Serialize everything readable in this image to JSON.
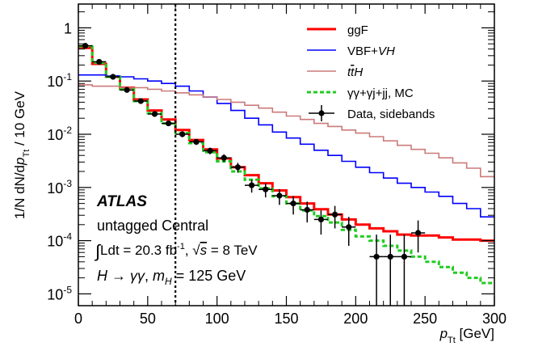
{
  "chart_data": {
    "type": "line",
    "xlabel": "p_Tt [GeV]",
    "ylabel": "1/N dN/dp_Tt / 10 GeV",
    "xlim": [
      0,
      300
    ],
    "ylim": [
      6e-06,
      2.8
    ],
    "y_scale": "log",
    "x_ticks": [
      0,
      50,
      100,
      150,
      200,
      250,
      300
    ],
    "y_ticks": [
      {
        "value": 1e-05,
        "mant": "10",
        "exp": "-5"
      },
      {
        "value": 0.0001,
        "mant": "10",
        "exp": "-4"
      },
      {
        "value": 0.001,
        "mant": "10",
        "exp": "-3"
      },
      {
        "value": 0.01,
        "mant": "10",
        "exp": "-2"
      },
      {
        "value": 0.1,
        "mant": "10",
        "exp": "-1"
      },
      {
        "value": 1,
        "mant": "1",
        "exp": ""
      }
    ],
    "cut_line_x": 70,
    "legend_position": "top-right",
    "bin_edges": [
      0,
      10,
      20,
      30,
      40,
      50,
      60,
      70,
      80,
      90,
      100,
      110,
      120,
      130,
      140,
      150,
      160,
      170,
      180,
      190,
      200,
      210,
      220,
      230,
      240,
      250,
      260,
      270,
      280,
      290,
      300
    ],
    "series": [
      {
        "name": "ggF",
        "style": "hist",
        "color": "#ff0000",
        "values": [
          0.42,
          0.21,
          0.12,
          0.075,
          0.045,
          0.028,
          0.019,
          0.012,
          0.0078,
          0.0052,
          0.0035,
          0.0024,
          0.0017,
          0.0012,
          0.00088,
          0.00066,
          0.0005,
          0.00039,
          0.00031,
          0.00025,
          0.0002,
          0.00017,
          0.00015,
          0.00013,
          0.000125,
          0.000125,
          0.000115,
          0.000105,
          0.000105,
          0.0001
        ]
      },
      {
        "name": "VBF+VH",
        "style": "hist",
        "color": "#0000ff",
        "values": [
          0.13,
          0.13,
          0.125,
          0.12,
          0.11,
          0.1,
          0.09,
          0.08,
          0.065,
          0.05,
          0.038,
          0.028,
          0.02,
          0.015,
          0.011,
          0.0085,
          0.0065,
          0.005,
          0.004,
          0.0031,
          0.0024,
          0.0019,
          0.0015,
          0.0012,
          0.001,
          0.00082,
          0.00068,
          0.0005,
          0.0004,
          0.00028
        ]
      },
      {
        "name": "ttH",
        "style": "hist",
        "color": "#cc7a7a",
        "values": [
          0.085,
          0.08,
          0.08,
          0.075,
          0.075,
          0.07,
          0.065,
          0.06,
          0.055,
          0.05,
          0.045,
          0.04,
          0.035,
          0.031,
          0.026,
          0.022,
          0.019,
          0.016,
          0.014,
          0.012,
          0.0105,
          0.009,
          0.0075,
          0.0062,
          0.0052,
          0.0044,
          0.0036,
          0.0029,
          0.0023,
          0.0016
        ]
      },
      {
        "name": "γγ+γj+jj, MC",
        "style": "hist-dashed",
        "color": "#22cc22",
        "values": [
          0.45,
          0.22,
          0.12,
          0.07,
          0.042,
          0.025,
          0.016,
          0.0105,
          0.0068,
          0.0046,
          0.0031,
          0.002,
          0.0014,
          0.00096,
          0.00068,
          0.0005,
          0.00037,
          0.00029,
          0.00022,
          0.00016,
          0.00012,
          0.0001,
          8e-05,
          6.5e-05,
          5e-05,
          4e-05,
          3.2e-05,
          2.5e-05,
          2e-05,
          1.6e-05
        ]
      },
      {
        "name": "Data, sidebands",
        "style": "points",
        "color": "#000000",
        "x": [
          5,
          15,
          25,
          35,
          45,
          55,
          65,
          75,
          85,
          95,
          105,
          115,
          125,
          135,
          145,
          155,
          165,
          175,
          185,
          195,
          215,
          225,
          235,
          245
        ],
        "values": [
          0.46,
          0.23,
          0.12,
          0.068,
          0.042,
          0.024,
          0.016,
          0.01,
          0.0072,
          0.0049,
          0.0036,
          0.0024,
          0.0011,
          0.00092,
          0.0007,
          0.0005,
          0.00038,
          0.00025,
          0.00031,
          0.00018,
          5e-05,
          5e-05,
          5e-05,
          0.00014
        ],
        "err_low": [
          0.04,
          0.02,
          0.01,
          0.007,
          0.004,
          0.0025,
          0.0018,
          0.0012,
          0.0009,
          0.0007,
          0.0006,
          0.0005,
          0.0003,
          0.00027,
          0.00023,
          0.00019,
          0.00016,
          0.00012,
          0.00014,
          0.0001,
          4.9e-05,
          4.9e-05,
          4.9e-05,
          8e-05
        ],
        "err_high": [
          0.04,
          0.02,
          0.01,
          0.007,
          0.004,
          0.0025,
          0.0018,
          0.0012,
          0.0009,
          0.0007,
          0.0006,
          0.0005,
          0.0003,
          0.00027,
          0.00023,
          0.00019,
          0.00016,
          0.00012,
          0.00014,
          0.0001,
          8e-05,
          8e-05,
          8e-05,
          0.0001
        ]
      }
    ],
    "annotations": {
      "experiment": "ATLAS",
      "category": "untagged Central",
      "lumi_line": "∫Ldt = 20.3 fb⁻¹, √s = 8 TeV",
      "process_line": "H → γγ, m_H = 125 GeV"
    }
  }
}
